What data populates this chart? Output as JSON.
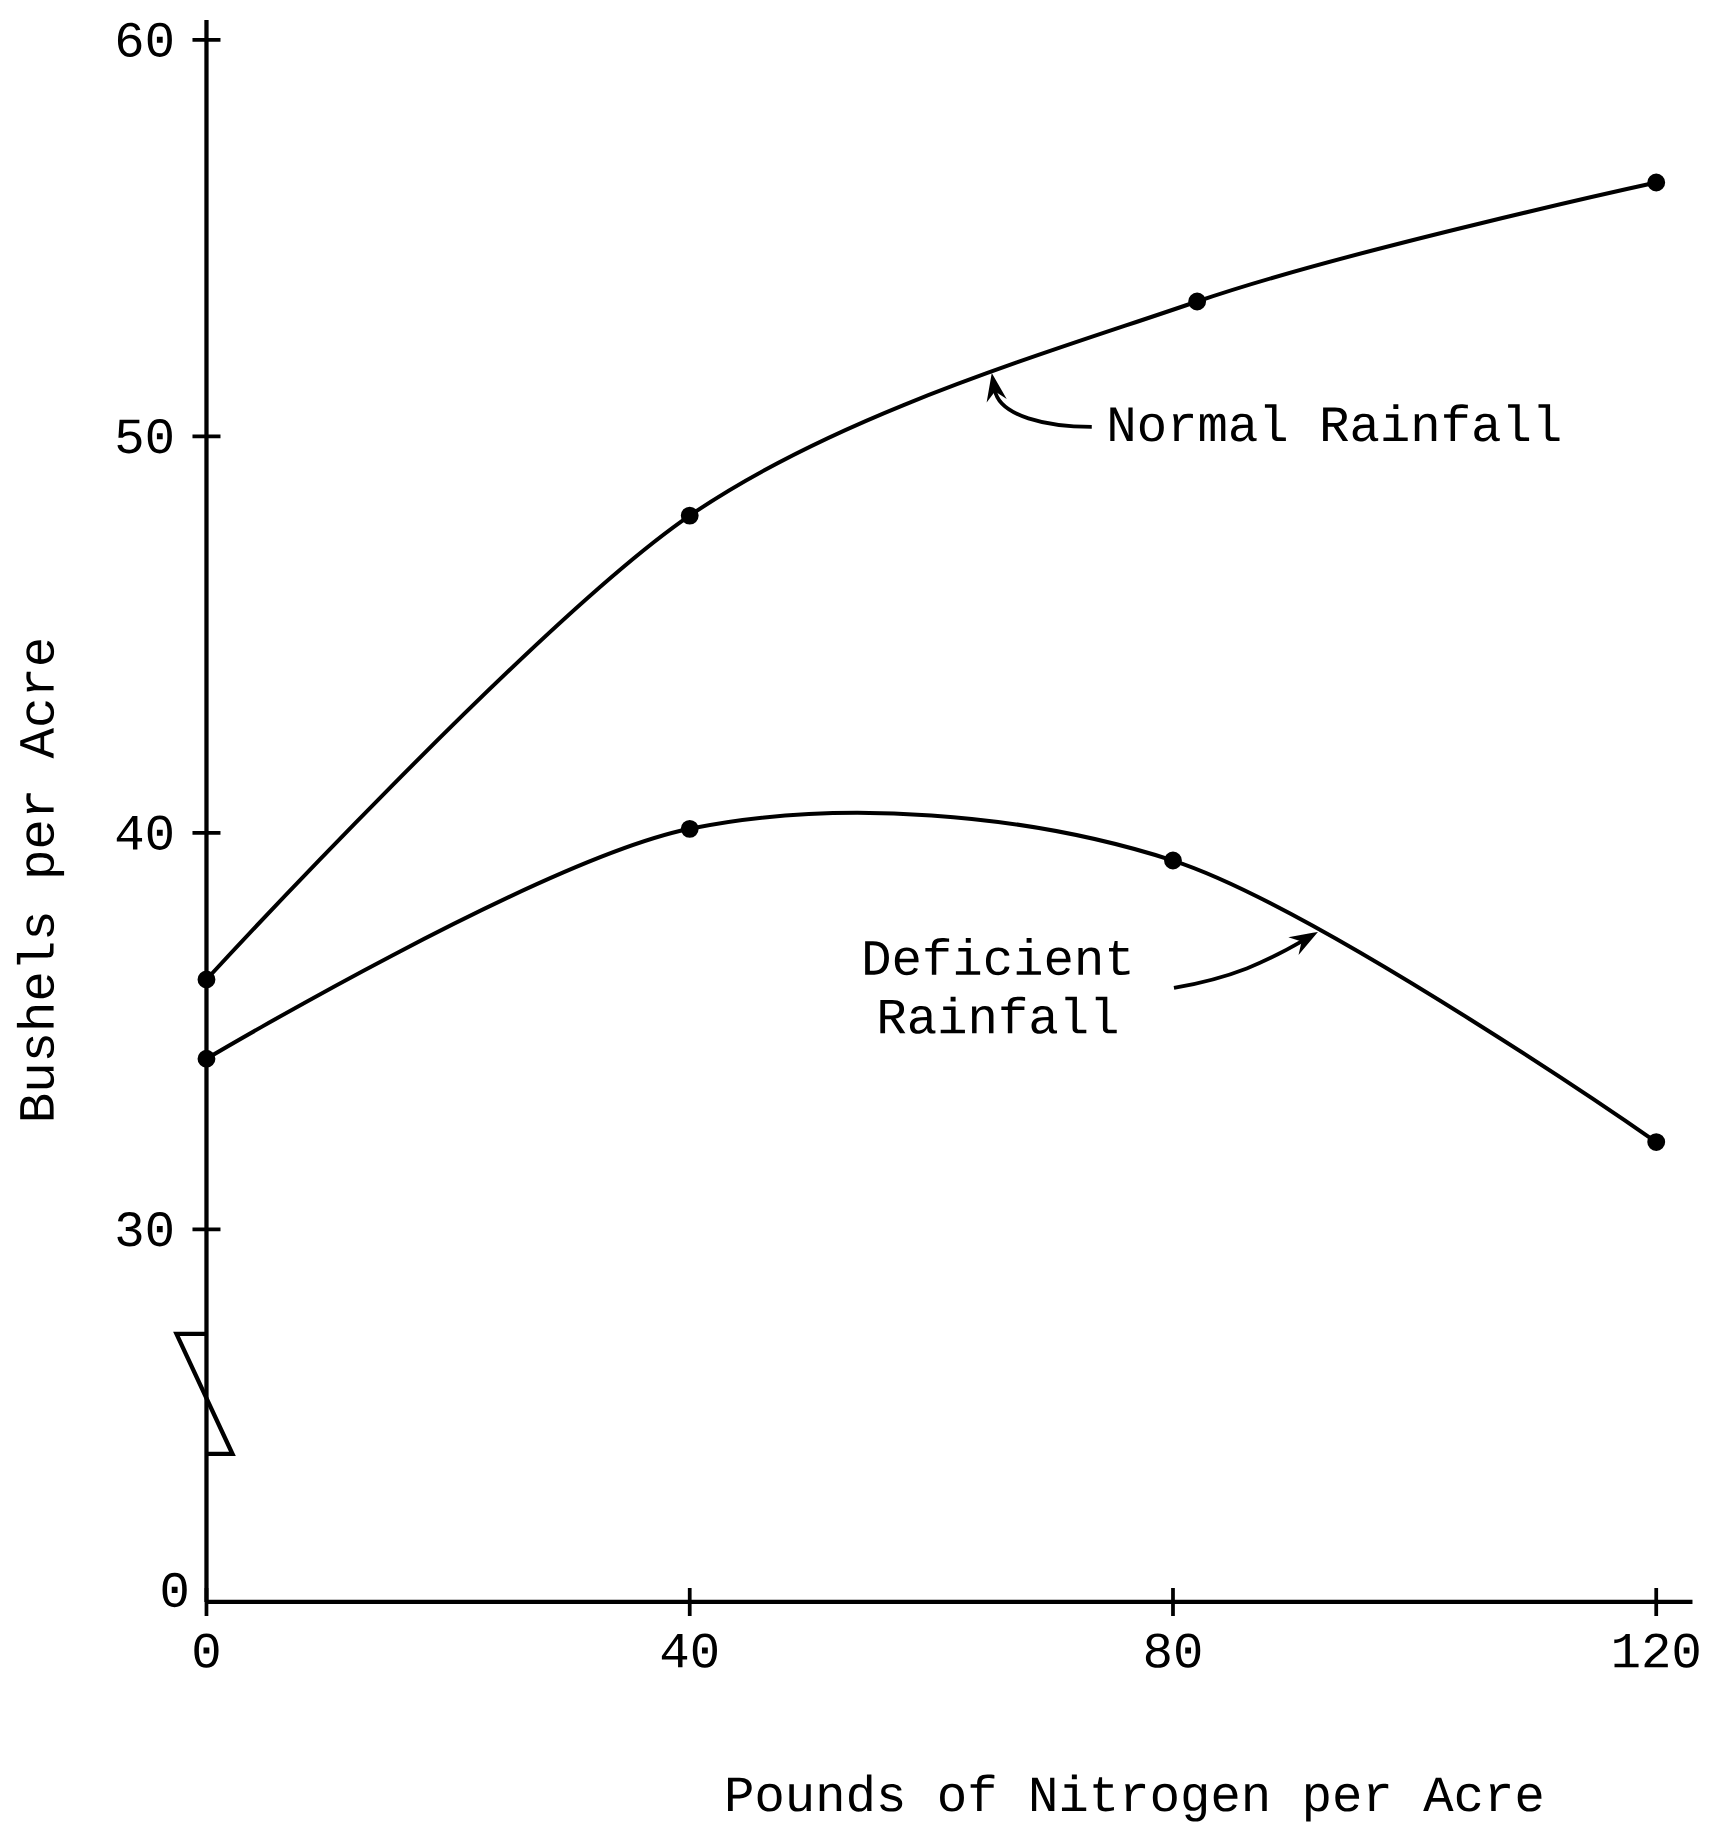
{
  "chart_data": {
    "type": "line",
    "xlim": [
      0,
      123
    ],
    "ylim": [
      20.6,
      60.5
    ],
    "xticks": [
      0,
      40,
      80,
      120
    ],
    "yticks": [
      30,
      40,
      50,
      60
    ],
    "xlabel": "Pounds of Nitrogen per Acre",
    "ylabel": "Bushels per Acre",
    "marker": "circle",
    "series": [
      {
        "color": "#000000",
        "x": [
          0,
          40,
          82,
          120
        ],
        "values": [
          36.3,
          48.0,
          53.4,
          56.4
        ]
      },
      {
        "color": "#000000",
        "x": [
          0,
          40,
          80,
          120
        ],
        "values": [
          34.3,
          40.1,
          39.3,
          32.2
        ]
      }
    ],
    "annotations": [
      {
        "text": "Normal Rainfall",
        "x": 65,
        "y": 51.6
      },
      {
        "text": "Deficient Rainfall",
        "x": 92,
        "y": 37.5
      },
      "0"
    ]
  }
}
